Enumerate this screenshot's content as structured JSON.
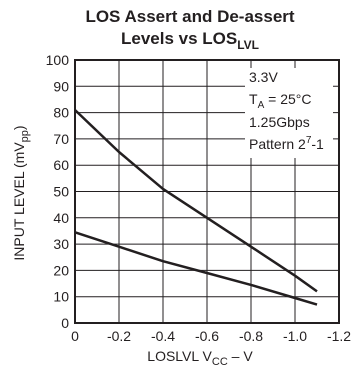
{
  "chart_data": {
    "type": "line",
    "title_line1": "LOS Assert and De-assert",
    "title_line2_main": "Levels vs LOS",
    "title_line2_sub": "LVL",
    "ylabel_main": "INPUT LEVEL (mV",
    "ylabel_sub": "pp",
    "ylabel_end": ")",
    "xlabel_main": "LOSLVL V",
    "xlabel_sub": "CC",
    "xlabel_end": " – V",
    "xlim": [
      0,
      -1.2
    ],
    "ylim": [
      0,
      100
    ],
    "x_ticks": [
      0,
      -0.2,
      -0.4,
      -0.6,
      -0.8,
      -1.0,
      -1.2
    ],
    "x_tick_labels": [
      "0",
      "-0.2",
      "-0.4",
      "-0.6",
      "-0.8",
      "-1.0",
      "-1.2"
    ],
    "y_ticks": [
      0,
      10,
      20,
      30,
      40,
      50,
      60,
      70,
      80,
      90,
      100
    ],
    "y_tick_labels": [
      "0",
      "10",
      "20",
      "30",
      "40",
      "50",
      "60",
      "70",
      "80",
      "90",
      "100"
    ],
    "grid": true,
    "line_color": "#231f20",
    "conditions": {
      "voltage": "3.3V",
      "temp_prefix": "T",
      "temp_sub": "A",
      "temp_suffix": " = 25°C",
      "rate": "1.25Gbps",
      "pattern_prefix": "Pattern 2",
      "pattern_sup": "7",
      "pattern_suffix": "-1"
    },
    "series": [
      {
        "x": [
          0,
          -0.2,
          -0.4,
          -0.6,
          -0.8,
          -1.0,
          -1.1
        ],
        "y": [
          81,
          65,
          51,
          40,
          29,
          18,
          12
        ]
      },
      {
        "x": [
          0,
          -0.2,
          -0.4,
          -0.6,
          -0.8,
          -1.0,
          -1.1
        ],
        "y": [
          34.5,
          29,
          23.5,
          19,
          14.5,
          9.5,
          7
        ]
      }
    ]
  }
}
